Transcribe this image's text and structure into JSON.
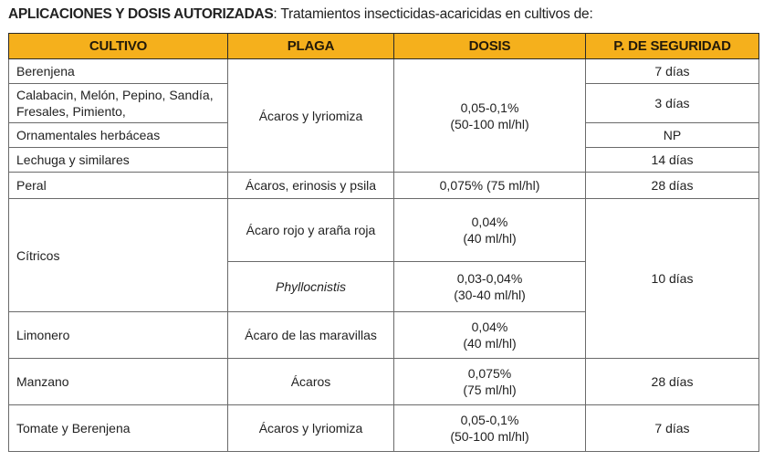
{
  "heading": {
    "bold": "APLICACIONES Y DOSIS AUTORIZADAS",
    "rest": ": Tratamientos insecticidas-acaricidas en cultivos de:"
  },
  "table": {
    "headers": [
      "CULTIVO",
      "PLAGA",
      "DOSIS",
      "P. DE SEGURIDAD"
    ],
    "group1": {
      "plaga": "Ácaros y lyriomiza",
      "dosis_line1": "0,05-0,1%",
      "dosis_line2": "(50-100 ml/hl)",
      "rows": [
        {
          "cultivo": "Berenjena",
          "seguridad": "7 días"
        },
        {
          "cultivo_line1": "Calabacin, Melón, Pepino, Sandía,",
          "cultivo_line2": "Fresales,  Pimiento,",
          "seguridad": "3 días"
        },
        {
          "cultivo": "Ornamentales herbáceas",
          "seguridad": "NP"
        },
        {
          "cultivo": "Lechuga y similares",
          "seguridad": "14 días"
        }
      ]
    },
    "peral": {
      "cultivo": "Peral",
      "plaga": "Ácaros, erinosis y psila",
      "dosis": "0,075% (75 ml/hl)",
      "seguridad": "28 días"
    },
    "citricos": {
      "cultivo": "Cítricos",
      "plaga1": "Ácaro rojo y araña roja",
      "dosis1_line1": "0,04%",
      "dosis1_line2": "(40 ml/hl)",
      "plaga2": "Phyllocnistis",
      "dosis2_line1": "0,03-0,04%",
      "dosis2_line2": "(30-40 ml/hl)",
      "seguridad": "10 días"
    },
    "limonero": {
      "cultivo": "Limonero",
      "plaga": "Ácaro de las maravillas",
      "dosis_line1": "0,04%",
      "dosis_line2": "(40 ml/hl)"
    },
    "manzano": {
      "cultivo": "Manzano",
      "plaga": "Ácaros",
      "dosis_line1": "0,075%",
      "dosis_line2": "(75 ml/hl)",
      "seguridad": "28 días"
    },
    "tomate": {
      "cultivo": "Tomate y Berenjena",
      "plaga": "Ácaros y lyriomiza",
      "dosis_line1": "0,05-0,1%",
      "dosis_line2": "(50-100 ml/hl)",
      "seguridad": "7 días"
    }
  },
  "colors": {
    "header_fill": "#f5b01c",
    "border": "#6a6a6a"
  }
}
